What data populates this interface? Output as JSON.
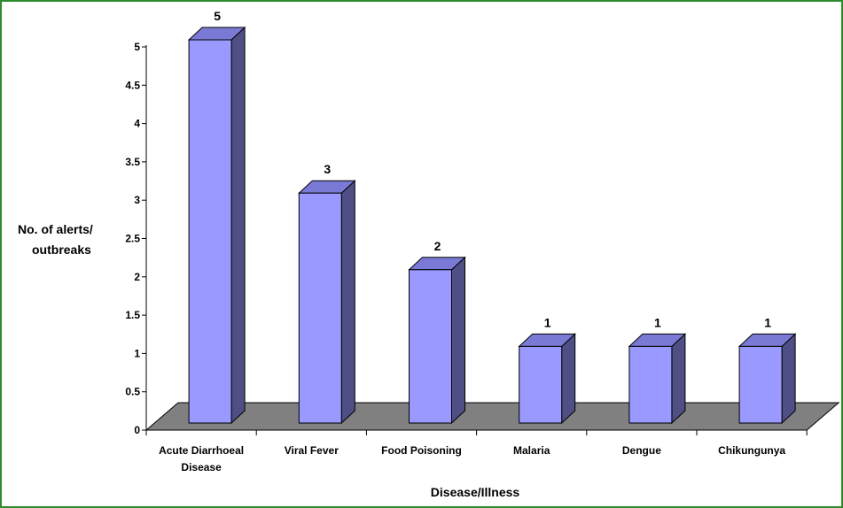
{
  "chart_data": {
    "type": "bar",
    "title": "",
    "xlabel": "Disease/Illness",
    "ylabel": [
      "No. of alerts/",
      "outbreaks"
    ],
    "categories": [
      [
        "Acute Diarrhoeal",
        "Disease"
      ],
      [
        "Viral Fever"
      ],
      [
        "Food Poisoning"
      ],
      [
        "Malaria"
      ],
      [
        "Dengue"
      ],
      [
        "Chikungunya"
      ]
    ],
    "values": [
      5,
      3,
      2,
      1,
      1,
      1
    ],
    "data_labels": [
      "5",
      "3",
      "2",
      "1",
      "1",
      "1"
    ],
    "ylim": [
      0,
      5
    ],
    "yticks": [
      "0",
      "0.5",
      "1",
      "1.5",
      "2",
      "2.5",
      "3",
      "3.5",
      "4",
      "4.5",
      "5"
    ],
    "ytick_values": [
      0,
      0.5,
      1,
      1.5,
      2,
      2.5,
      3,
      3.5,
      4,
      4.5,
      5
    ],
    "grid": false,
    "legend": "none",
    "style": "3d-column",
    "colors": {
      "bar_front": "#9999ff",
      "bar_side": "#4f4f86",
      "bar_top": "#7a7ad6",
      "floor": "#808080",
      "border": "#2e8b2e",
      "outline": "#000000"
    }
  }
}
